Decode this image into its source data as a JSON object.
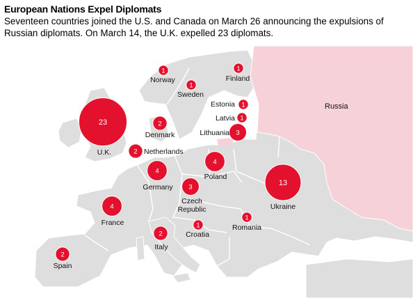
{
  "title": "European Nations Expel Diplomats",
  "subtitle": "Seventeen countries joined the U.S. and Canada on March 26 announcing the expulsions of Russian diplomats. On March 14, the U.K. expelled 23 diplomats.",
  "colors": {
    "bubble": "#e3102e",
    "russia": "#f6d2d8",
    "land": "#dedede",
    "water": "#ffffff",
    "border": "#ffffff"
  },
  "russia_label": "Russia",
  "countries": [
    {
      "name": "U.K.",
      "count": 23
    },
    {
      "name": "Ukraine",
      "count": 13
    },
    {
      "name": "Germany",
      "count": 4
    },
    {
      "name": "Poland",
      "count": 4
    },
    {
      "name": "France",
      "count": 4
    },
    {
      "name": "Lithuania",
      "count": 3
    },
    {
      "name": "Czech Republic",
      "count": 3
    },
    {
      "name": "Denmark",
      "count": 2
    },
    {
      "name": "Netherlands",
      "count": 2
    },
    {
      "name": "Italy",
      "count": 2
    },
    {
      "name": "Spain",
      "count": 2
    },
    {
      "name": "Norway",
      "count": 1
    },
    {
      "name": "Sweden",
      "count": 1
    },
    {
      "name": "Finland",
      "count": 1
    },
    {
      "name": "Estonia",
      "count": 1
    },
    {
      "name": "Latvia",
      "count": 1
    },
    {
      "name": "Croatia",
      "count": 1
    },
    {
      "name": "Romania",
      "count": 1
    }
  ]
}
